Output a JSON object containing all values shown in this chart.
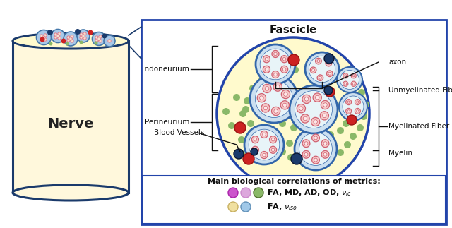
{
  "nerve_body_color": "#FFF8DC",
  "nerve_border_color": "#1a3a6b",
  "fascicle_bg_color": "#FFFACD",
  "myelin_ring_color": "#a8c8e8",
  "axon_center_color": "#f5e0d0",
  "axon_ring_color": "#e08090",
  "green_dot_color": "#8ab868",
  "red_dot_color": "#cc2222",
  "dark_blue_dot_color": "#1a3a6b",
  "fig_bg": "#ffffff",
  "panel_border": "#2244aa",
  "nerve_label": "Nerve",
  "fascicle_title": "Fascicle",
  "legend_title": "Main biological correlations of metrics:",
  "leg_row1_text": "FA, MD, AD, OD, $\\nu_{ic}$",
  "leg_row2_text": "FA, $\\nu_{iso}$",
  "ann_color": "#111111",
  "label_blood": "Blood Vessels",
  "label_peri": "Perineurium",
  "label_endo": "Endoneurium",
  "label_myelin": "Myelin",
  "label_myelin_fiber": "Myelinated Fiber",
  "label_unmyelin": "Unmyelinated Fiber",
  "label_axon": "axon"
}
